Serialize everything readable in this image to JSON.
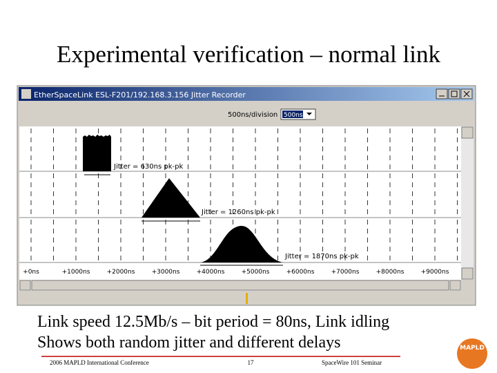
{
  "slide": {
    "title": "Experimental verification – normal link",
    "captions": [
      "Link speed 12.5Mb/s – bit period = 80ns, Link idling",
      "Shows both random jitter and different delays"
    ],
    "footer": {
      "left": "2006 MAPLD International Conference",
      "center": "17",
      "right": "SpaceWire 101 Seminar",
      "logo": "MAPLD"
    }
  },
  "window": {
    "title": "EtherSpaceLink ESL-F201/192.168.3.156 Jitter Recorder",
    "division_label": "500ns/division",
    "division_select": "500ns",
    "jitter_labels": [
      "Jitter = 630ns pk-pk",
      "Jitter = 1260ns pk-pk",
      "Jitter = 1870ns pk-pk"
    ],
    "axis_labels": [
      "+0ns",
      "+1000ns",
      "+2000ns",
      "+3000ns",
      "+4000ns",
      "+5000ns",
      "+6000ns",
      "+7000ns",
      "+8000ns",
      "+9000ns"
    ]
  }
}
